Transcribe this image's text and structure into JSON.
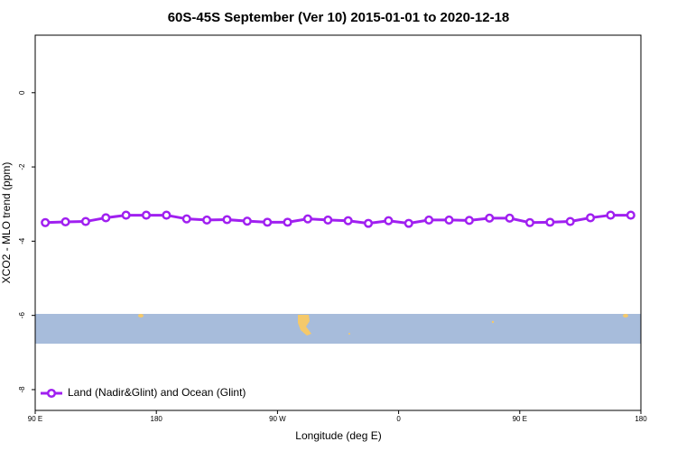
{
  "chart_data": {
    "type": "line",
    "title": "60S-45S September (Ver 10)   2015-01-01 to 2020-12-18",
    "xlabel": "Longitude (deg E)",
    "ylabel": "XCO2 - MLO trend (ppm)",
    "x": [
      97.5,
      112.5,
      127.5,
      142.5,
      157.5,
      172.5,
      187.5,
      202.5,
      217.5,
      232.5,
      247.5,
      262.5,
      277.5,
      292.5,
      307.5,
      322.5,
      337.5,
      352.5,
      367.5,
      382.5,
      397.5,
      412.5,
      427.5,
      442.5,
      457.5,
      472.5,
      487.5,
      502.5,
      517.5,
      532.5
    ],
    "series": [
      {
        "name": "Land (Nadir&Glint) and Ocean (Glint)",
        "color": "#a020f0",
        "values": [
          -3.5,
          -3.48,
          -3.47,
          -3.37,
          -3.3,
          -3.3,
          -3.3,
          -3.4,
          -3.43,
          -3.42,
          -3.46,
          -3.49,
          -3.49,
          -3.4,
          -3.43,
          -3.45,
          -3.52,
          -3.45,
          -3.52,
          -3.43,
          -3.43,
          -3.44,
          -3.38,
          -3.38,
          -3.5,
          -3.49,
          -3.47,
          -3.37,
          -3.3,
          -3.3
        ]
      }
    ],
    "xlim": [
      90,
      540
    ],
    "xticks": [
      {
        "value": 90,
        "label": "90 E"
      },
      180,
      {
        "value": 270,
        "label": "90 W"
      },
      {
        "value": 360,
        "label": "0"
      },
      {
        "value": 450,
        "label": "90 E"
      },
      {
        "value": 540,
        "label": "180"
      }
    ],
    "ylim": [
      -8.56,
      1.55
    ],
    "yticks": [
      0,
      -2,
      -4,
      -6,
      -8
    ],
    "legend": "bottom-left"
  }
}
